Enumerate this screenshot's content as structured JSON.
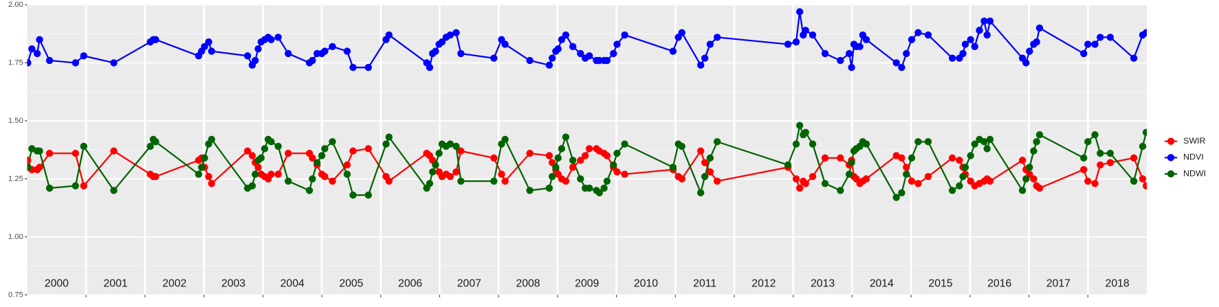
{
  "chart_data": {
    "type": "line",
    "x": [
      2000.01,
      2000.08,
      2000.17,
      2000.21,
      2000.38,
      2000.82,
      2000.96,
      2001.47,
      2002.09,
      2002.14,
      2002.18,
      2002.91,
      2002.96,
      2003.01,
      2003.08,
      2003.13,
      2003.74,
      2003.82,
      2003.87,
      2003.92,
      2003.97,
      2004.03,
      2004.09,
      2004.14,
      2004.26,
      2004.43,
      2004.79,
      2004.84,
      2004.92,
      2005.0,
      2005.05,
      2005.18,
      2005.43,
      2005.53,
      2005.79,
      2006.09,
      2006.14,
      2006.78,
      2006.83,
      2006.88,
      2006.93,
      2006.99,
      2007.04,
      2007.11,
      2007.18,
      2007.28,
      2007.36,
      2007.92,
      2008.05,
      2008.11,
      2008.53,
      2008.86,
      2008.91,
      2008.97,
      2009.01,
      2009.07,
      2009.14,
      2009.26,
      2009.39,
      2009.47,
      2009.54,
      2009.66,
      2009.71,
      2009.79,
      2009.84,
      2009.95,
      2010.01,
      2010.14,
      2010.96,
      2011.05,
      2011.11,
      2011.43,
      2011.5,
      2011.59,
      2011.71,
      2012.91,
      2013.05,
      2013.11,
      2013.17,
      2013.21,
      2013.33,
      2013.54,
      2013.8,
      2013.95,
      2013.99,
      2014.03,
      2014.07,
      2014.13,
      2014.18,
      2014.24,
      2014.75,
      2014.84,
      2014.92,
      2015.01,
      2015.12,
      2015.29,
      2015.7,
      2015.82,
      2015.88,
      2015.92,
      2016.01,
      2016.08,
      2016.16,
      2016.24,
      2016.29,
      2016.34,
      2016.89,
      2016.95,
      2017.01,
      2017.08,
      2017.13,
      2017.18,
      2017.93,
      2018.0,
      2018.12,
      2018.21,
      2018.38,
      2018.78,
      2018.93,
      2018.99
    ],
    "series": [
      {
        "name": "SWIR",
        "color": "#ff0000",
        "values": [
          1.33,
          1.29,
          1.29,
          1.3,
          1.36,
          1.36,
          1.22,
          1.37,
          1.27,
          1.26,
          1.26,
          1.33,
          1.34,
          1.3,
          1.26,
          1.23,
          1.37,
          1.35,
          1.32,
          1.3,
          1.27,
          1.26,
          1.25,
          1.27,
          1.27,
          1.36,
          1.36,
          1.34,
          1.31,
          1.27,
          1.26,
          1.24,
          1.31,
          1.37,
          1.38,
          1.26,
          1.24,
          1.36,
          1.35,
          1.33,
          1.31,
          1.28,
          1.26,
          1.27,
          1.26,
          1.28,
          1.37,
          1.34,
          1.27,
          1.24,
          1.36,
          1.35,
          1.32,
          1.29,
          1.27,
          1.25,
          1.24,
          1.3,
          1.33,
          1.35,
          1.38,
          1.38,
          1.37,
          1.36,
          1.35,
          1.3,
          1.28,
          1.27,
          1.29,
          1.26,
          1.25,
          1.37,
          1.32,
          1.28,
          1.24,
          1.3,
          1.25,
          1.21,
          1.24,
          1.23,
          1.26,
          1.34,
          1.34,
          1.31,
          1.33,
          1.26,
          1.25,
          1.23,
          1.24,
          1.25,
          1.35,
          1.34,
          1.3,
          1.24,
          1.23,
          1.26,
          1.34,
          1.33,
          1.3,
          1.27,
          1.24,
          1.22,
          1.23,
          1.24,
          1.25,
          1.24,
          1.33,
          1.29,
          1.27,
          1.25,
          1.22,
          1.21,
          1.29,
          1.24,
          1.23,
          1.31,
          1.32,
          1.34,
          1.25,
          1.22
        ]
      },
      {
        "name": "NDVI",
        "color": "#0000ff",
        "values": [
          1.75,
          1.81,
          1.79,
          1.85,
          1.76,
          1.75,
          1.78,
          1.75,
          1.84,
          1.85,
          1.85,
          1.78,
          1.8,
          1.82,
          1.84,
          1.8,
          1.78,
          1.74,
          1.76,
          1.81,
          1.84,
          1.85,
          1.86,
          1.85,
          1.86,
          1.79,
          1.75,
          1.76,
          1.79,
          1.79,
          1.8,
          1.82,
          1.8,
          1.73,
          1.73,
          1.85,
          1.87,
          1.75,
          1.73,
          1.79,
          1.8,
          1.83,
          1.84,
          1.86,
          1.87,
          1.88,
          1.79,
          1.77,
          1.85,
          1.83,
          1.76,
          1.74,
          1.77,
          1.8,
          1.81,
          1.85,
          1.87,
          1.82,
          1.79,
          1.77,
          1.78,
          1.76,
          1.76,
          1.76,
          1.76,
          1.79,
          1.83,
          1.87,
          1.8,
          1.86,
          1.88,
          1.74,
          1.77,
          1.83,
          1.86,
          1.83,
          1.84,
          1.97,
          1.87,
          1.89,
          1.87,
          1.79,
          1.76,
          1.79,
          1.73,
          1.83,
          1.82,
          1.82,
          1.87,
          1.85,
          1.75,
          1.73,
          1.79,
          1.85,
          1.88,
          1.87,
          1.77,
          1.77,
          1.79,
          1.83,
          1.85,
          1.82,
          1.89,
          1.93,
          1.87,
          1.93,
          1.77,
          1.75,
          1.8,
          1.83,
          1.84,
          1.9,
          1.79,
          1.83,
          1.83,
          1.86,
          1.86,
          1.77,
          1.87,
          1.88
        ]
      },
      {
        "name": "NDWI",
        "color": "#006400",
        "values": [
          1.3,
          1.38,
          1.37,
          1.37,
          1.21,
          1.22,
          1.39,
          1.2,
          1.39,
          1.42,
          1.41,
          1.27,
          1.3,
          1.34,
          1.4,
          1.42,
          1.21,
          1.22,
          1.27,
          1.33,
          1.34,
          1.38,
          1.42,
          1.41,
          1.39,
          1.24,
          1.2,
          1.25,
          1.32,
          1.35,
          1.38,
          1.41,
          1.27,
          1.18,
          1.18,
          1.4,
          1.43,
          1.21,
          1.23,
          1.28,
          1.31,
          1.36,
          1.4,
          1.39,
          1.4,
          1.39,
          1.24,
          1.24,
          1.4,
          1.42,
          1.2,
          1.21,
          1.26,
          1.3,
          1.34,
          1.38,
          1.43,
          1.33,
          1.25,
          1.21,
          1.21,
          1.2,
          1.19,
          1.21,
          1.24,
          1.31,
          1.36,
          1.4,
          1.3,
          1.4,
          1.39,
          1.19,
          1.26,
          1.34,
          1.41,
          1.31,
          1.4,
          1.48,
          1.44,
          1.45,
          1.4,
          1.23,
          1.2,
          1.27,
          1.32,
          1.37,
          1.38,
          1.39,
          1.41,
          1.4,
          1.17,
          1.19,
          1.27,
          1.34,
          1.41,
          1.41,
          1.2,
          1.22,
          1.26,
          1.3,
          1.35,
          1.4,
          1.42,
          1.41,
          1.38,
          1.42,
          1.2,
          1.25,
          1.3,
          1.37,
          1.41,
          1.44,
          1.34,
          1.41,
          1.44,
          1.36,
          1.36,
          1.24,
          1.39,
          1.45
        ]
      }
    ],
    "xlim": [
      2000,
      2019
    ],
    "xticks": [
      {
        "value": 2000.5,
        "label": "2000"
      },
      {
        "value": 2001.5,
        "label": "2001"
      },
      {
        "value": 2002.5,
        "label": "2002"
      },
      {
        "value": 2003.5,
        "label": "2003"
      },
      {
        "value": 2004.5,
        "label": "2004"
      },
      {
        "value": 2005.5,
        "label": "2005"
      },
      {
        "value": 2006.5,
        "label": "2006"
      },
      {
        "value": 2007.5,
        "label": "2007"
      },
      {
        "value": 2008.5,
        "label": "2008"
      },
      {
        "value": 2009.5,
        "label": "2009"
      },
      {
        "value": 2010.5,
        "label": "2010"
      },
      {
        "value": 2011.5,
        "label": "2011"
      },
      {
        "value": 2012.5,
        "label": "2012"
      },
      {
        "value": 2013.5,
        "label": "2013"
      },
      {
        "value": 2014.5,
        "label": "2014"
      },
      {
        "value": 2015.5,
        "label": "2015"
      },
      {
        "value": 2016.5,
        "label": "2016"
      },
      {
        "value": 2017.5,
        "label": "2017"
      },
      {
        "value": 2018.5,
        "label": "2018"
      }
    ],
    "xgrid": [
      2001,
      2002,
      2003,
      2004,
      2005,
      2006,
      2007,
      2008,
      2009,
      2010,
      2011,
      2012,
      2013,
      2014,
      2015,
      2016,
      2017,
      2018
    ],
    "ylim": [
      0.75,
      2.0
    ],
    "yticks": [
      {
        "value": 0.75,
        "label": "0.75"
      },
      {
        "value": 1.0,
        "label": "1.00"
      },
      {
        "value": 1.25,
        "label": "1.25"
      },
      {
        "value": 1.5,
        "label": "1.50"
      },
      {
        "value": 1.75,
        "label": "1.75"
      },
      {
        "value": 2.0,
        "label": "2.00"
      }
    ],
    "grid": true,
    "minor_grid": true,
    "legend": "right"
  }
}
